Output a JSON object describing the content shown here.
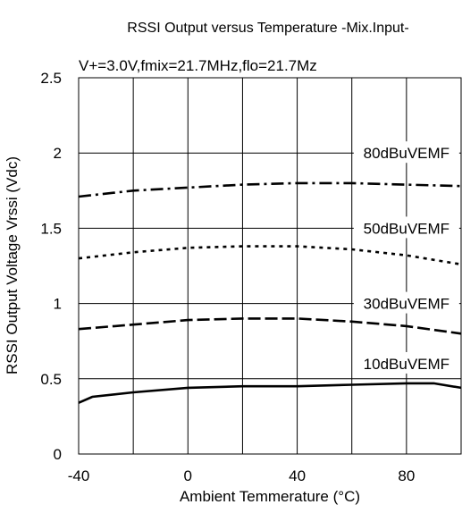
{
  "chart_data": {
    "type": "line",
    "title": "RSSI Output versus Temperature -Mix.Input-",
    "subtitle": "V+=3.0V,fmix=21.7MHz,flo=21.7Mz",
    "xlabel": "Ambient Temmerature (°C)",
    "ylabel": "RSSI Output Voltage Vrssi (Vdc)",
    "xlim": [
      -40,
      100
    ],
    "ylim": [
      0,
      2.5
    ],
    "x_ticks": [
      -40,
      0,
      40,
      80
    ],
    "x_tick_labels": [
      "-40",
      "0",
      "40",
      "80"
    ],
    "x_grid": [
      -40,
      -20,
      0,
      20,
      40,
      60,
      80,
      100
    ],
    "y_ticks": [
      0,
      0.5,
      1,
      1.5,
      2,
      2.5
    ],
    "y_tick_labels": [
      "0",
      "0.5",
      "1",
      "1.5",
      "2",
      "2.5"
    ],
    "grid": true,
    "series": [
      {
        "name": "80dBuVEMF",
        "style": "dashdot",
        "label_x": 80,
        "label_y": 2.0,
        "x": [
          -40,
          -20,
          0,
          20,
          40,
          60,
          80,
          100
        ],
        "y": [
          1.71,
          1.75,
          1.77,
          1.79,
          1.8,
          1.8,
          1.79,
          1.78
        ]
      },
      {
        "name": "50dBuVEMF",
        "style": "dotted",
        "label_x": 80,
        "label_y": 1.5,
        "x": [
          -40,
          -20,
          0,
          20,
          40,
          60,
          80,
          100
        ],
        "y": [
          1.3,
          1.34,
          1.37,
          1.38,
          1.38,
          1.36,
          1.32,
          1.26
        ]
      },
      {
        "name": "30dBuVEMF",
        "style": "dashed",
        "label_x": 80,
        "label_y": 1.0,
        "x": [
          -40,
          -20,
          0,
          20,
          40,
          60,
          80,
          100
        ],
        "y": [
          0.83,
          0.86,
          0.89,
          0.9,
          0.9,
          0.88,
          0.85,
          0.8
        ]
      },
      {
        "name": "10dBuVEMF",
        "style": "solid",
        "label_x": 80,
        "label_y": 0.6,
        "x": [
          -40,
          -35,
          -20,
          0,
          20,
          40,
          60,
          80,
          90,
          100
        ],
        "y": [
          0.34,
          0.38,
          0.41,
          0.44,
          0.45,
          0.45,
          0.46,
          0.47,
          0.47,
          0.44
        ]
      }
    ],
    "colors": {
      "line": "#000000",
      "grid": "#000000",
      "background": "#ffffff"
    }
  }
}
